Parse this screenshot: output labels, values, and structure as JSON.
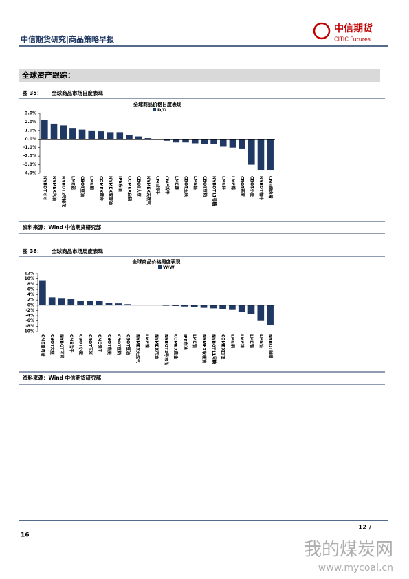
{
  "header": {
    "title": "中信期货研究|商品策略早报"
  },
  "logo": {
    "name": "中信期货",
    "english": "CITIC Futures"
  },
  "section": {
    "title": "全球资产跟踪："
  },
  "figures": [
    {
      "label": "图 35：",
      "caption": "全球商品市场日度表现",
      "source": "资料来源：Wind 中信期货研究部"
    },
    {
      "label": "图 36：",
      "caption": "全球商品市场周度表现",
      "source": "资料来源：Wind 中信期货研究部"
    }
  ],
  "footer": {
    "page": "16",
    "page_of": "12 /"
  },
  "watermark": {
    "text": "我的煤炭网",
    "url": "www.mycoal.cn"
  },
  "chart_data": [
    {
      "type": "bar",
      "title": "全球商品价格日度表现",
      "categories": [
        "NYBOT可可",
        "NYMEX汽油",
        "NYBOT2号棉花",
        "LME铝",
        "CBOT豆油",
        "LME铜",
        "COMEX黄金",
        "NYMEX取暖油",
        "IPE布油",
        "COMEX白银",
        "CBOT大豆",
        "NYMEX天然气",
        "CME饲牛",
        "CME活牛",
        "LME镍",
        "CBOT玉米",
        "LME铅",
        "CBOT豆粕",
        "NYBOT11号糖",
        "LME锌",
        "LME锡",
        "CBOT燕麦",
        "CBOT小麦",
        "NYBOT咖啡",
        "CME瘦肉猪"
      ],
      "series": [
        {
          "name": "D/D",
          "color": "#1f3864",
          "values": [
            2.2,
            1.8,
            1.6,
            1.3,
            1.1,
            1.0,
            0.9,
            0.8,
            0.8,
            0.5,
            0.3,
            0.1,
            0.0,
            -0.2,
            -0.4,
            -0.4,
            -0.5,
            -0.6,
            -0.6,
            -0.9,
            -1.0,
            -1.1,
            -3.0,
            -3.6,
            -3.6
          ]
        }
      ],
      "ylim": [
        -4,
        3
      ],
      "yticks": [
        {
          "value": -4,
          "label": "-4.0%"
        },
        {
          "value": -3,
          "label": "-3.0%"
        },
        {
          "value": -2,
          "label": "-2.0%"
        },
        {
          "value": -1,
          "label": "-1.0%"
        },
        {
          "value": 0,
          "label": "0.0%"
        },
        {
          "value": 1,
          "label": "1.0%"
        },
        {
          "value": 2,
          "label": "2.0%"
        },
        {
          "value": 3,
          "label": "3.0%"
        }
      ]
    },
    {
      "type": "bar",
      "title": "全球商品价格周度表现",
      "categories": [
        "CME瘦肉猪",
        "CBOT大豆",
        "NYBOT可可",
        "CME活牛",
        "CBOT小麦",
        "CBOT玉米",
        "CME饲牛",
        "CBOT燕麦",
        "CBOT豆粕",
        "CBOT豆油",
        "NYMEX天然气",
        "LME镍",
        "NYMEX汽油",
        "NYBOT2号棉花",
        "COMEX黄金",
        "IPE布油",
        "LME铝",
        "NYMEX取暖油",
        "NYBOT11号糖",
        "COMEX白银",
        "LME铜",
        "LME锌",
        "LME锡",
        "LME铅",
        "NYBOT咖啡"
      ],
      "series": [
        {
          "name": "W/W",
          "color": "#1f3864",
          "values": [
            9.5,
            3,
            2.5,
            2.3,
            1.7,
            1.7,
            1.6,
            1,
            0.7,
            0.4,
            0.2,
            0.1,
            0,
            -0.2,
            -0.3,
            -0.5,
            -0.8,
            -1,
            -1.2,
            -1.6,
            -1.8,
            -2.5,
            -3.2,
            -6,
            -7.5
          ]
        }
      ],
      "ylim": [
        -10,
        12
      ],
      "yticks": [
        {
          "value": -10,
          "label": "-10%"
        },
        {
          "value": -8,
          "label": "-8%"
        },
        {
          "value": -6,
          "label": "-6%"
        },
        {
          "value": -4,
          "label": "-4%"
        },
        {
          "value": -2,
          "label": "-2%"
        },
        {
          "value": 0,
          "label": "0%"
        },
        {
          "value": 2,
          "label": "2%"
        },
        {
          "value": 4,
          "label": "4%"
        },
        {
          "value": 6,
          "label": "6%"
        },
        {
          "value": 8,
          "label": "8%"
        },
        {
          "value": 10,
          "label": "10%"
        },
        {
          "value": 12,
          "label": "12%"
        }
      ]
    }
  ]
}
